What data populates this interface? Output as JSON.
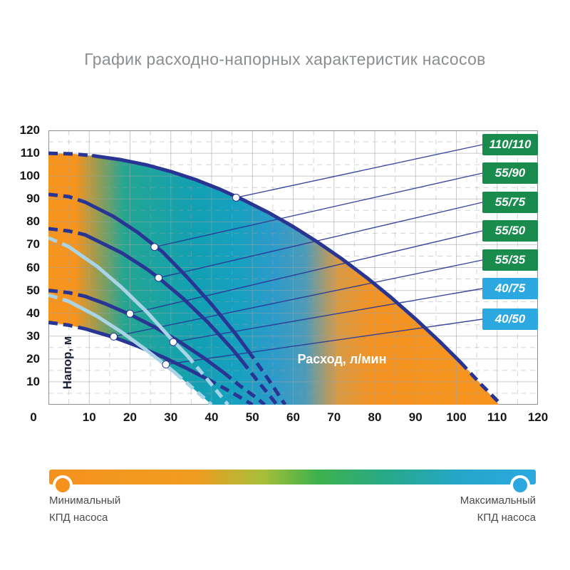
{
  "title": "График расходно-напорных характеристик насосов",
  "chart": {
    "y_axis_label": "Напор, м",
    "x_axis_label": "Расход, л/мин"
  },
  "legend": {
    "min_label_line1": "Минимальный",
    "min_label_line2": "КПД насоса",
    "max_label_line1": "Максимальный",
    "max_label_line2": "КПД насоса",
    "min_color": "#f5921e",
    "max_color": "#2ba8e0"
  },
  "colors": {
    "dark_curve": "#283593",
    "light_curve": "#a8d4e6",
    "badge_green": "#188b4d",
    "badge_blue": "#2ba8e0",
    "grid": "#9aa0a6",
    "tick_text": "#161616",
    "title_text": "#8a8e90"
  },
  "chart_data": {
    "type": "line",
    "title": "График расходно-напорных характеристик насосов",
    "xlabel": "Расход, л/мин",
    "ylabel": "Напор, м",
    "xlim": [
      0,
      120
    ],
    "ylim": [
      0,
      120
    ],
    "x_ticks": [
      0,
      10,
      20,
      30,
      40,
      50,
      60,
      70,
      80,
      90,
      100,
      110,
      120
    ],
    "y_ticks": [
      10,
      20,
      30,
      40,
      50,
      60,
      70,
      80,
      90,
      100,
      110,
      120
    ],
    "grid": "major solid every 10, minor dashed every 5",
    "legend_position": "right badges",
    "series": [
      {
        "name": "110/110",
        "badge_color": "#188b4d",
        "curve_color": "#283593",
        "width": 5,
        "max_head_m": 110,
        "max_flow_lmin": 111,
        "dash_start": [
          [
            0,
            110
          ],
          [
            6,
            109.7
          ],
          [
            11,
            108.9
          ]
        ],
        "solid": [
          [
            11,
            108.9
          ],
          [
            18,
            107.1
          ],
          [
            24,
            104.9
          ],
          [
            30,
            102
          ],
          [
            36,
            98.5
          ],
          [
            42,
            94.3
          ],
          [
            48,
            89.4
          ],
          [
            54,
            84
          ],
          [
            60,
            77.9
          ],
          [
            66,
            71.1
          ],
          [
            72,
            63.7
          ],
          [
            78,
            55.6
          ],
          [
            84,
            46.9
          ],
          [
            90,
            37.5
          ],
          [
            96,
            27.5
          ],
          [
            101,
            18.6
          ]
        ],
        "dash_end": [
          [
            101,
            18.6
          ],
          [
            106,
            9
          ],
          [
            111,
            0
          ]
        ],
        "marker": [
          46,
          90.6
        ]
      },
      {
        "name": "55/90",
        "badge_color": "#188b4d",
        "curve_color": "#283593",
        "width": 5,
        "max_head_m": 92,
        "max_flow_lmin": 58,
        "dash_start": [
          [
            0,
            92
          ],
          [
            5,
            91
          ],
          [
            9,
            88.6
          ]
        ],
        "solid": [
          [
            9,
            88.6
          ],
          [
            16,
            82.3
          ],
          [
            22,
            75.2
          ],
          [
            28,
            66.8
          ],
          [
            34,
            55.8
          ],
          [
            40,
            43.9
          ],
          [
            46,
            30.7
          ],
          [
            49,
            23.5
          ]
        ],
        "dash_end": [
          [
            49,
            23.5
          ],
          [
            53,
            13.5
          ],
          [
            56,
            5.5
          ],
          [
            58,
            0
          ]
        ],
        "marker": [
          26,
          69
        ]
      },
      {
        "name": "55/75",
        "badge_color": "#188b4d",
        "curve_color": "#283593",
        "width": 5,
        "max_head_m": 77,
        "max_flow_lmin": 56,
        "dash_start": [
          [
            0,
            77
          ],
          [
            5,
            76
          ],
          [
            9,
            74.3
          ]
        ],
        "solid": [
          [
            9,
            74.3
          ],
          [
            18,
            66.4
          ],
          [
            24,
            59.5
          ],
          [
            27,
            55.5
          ],
          [
            33,
            46.5
          ],
          [
            39,
            36.2
          ],
          [
            45,
            24.5
          ],
          [
            47.5,
            19
          ]
        ],
        "dash_end": [
          [
            47.5,
            19
          ],
          [
            51,
            11
          ],
          [
            54,
            4.5
          ],
          [
            56,
            0
          ]
        ],
        "marker": [
          27,
          55.5
        ]
      },
      {
        "name": "55/50",
        "badge_color": "#188b4d",
        "curve_color": "#283593",
        "width": 5,
        "max_head_m": 50,
        "max_flow_lmin": 53,
        "dash_start": [
          [
            0,
            50
          ],
          [
            5,
            49
          ],
          [
            9,
            47.4
          ]
        ],
        "solid": [
          [
            9,
            47.4
          ],
          [
            14,
            44.1
          ],
          [
            20,
            39.5
          ],
          [
            26,
            34
          ],
          [
            32,
            27.7
          ],
          [
            38,
            20.6
          ],
          [
            43,
            14
          ]
        ],
        "dash_end": [
          [
            43,
            14
          ],
          [
            47,
            8.2
          ],
          [
            51,
            3
          ],
          [
            53,
            0
          ]
        ],
        "marker": [
          20,
          39.8
        ]
      },
      {
        "name": "55/35",
        "badge_color": "#188b4d",
        "curve_color": "#283593",
        "width": 5,
        "max_head_m": 36,
        "max_flow_lmin": 50,
        "dash_start": [
          [
            0,
            36
          ],
          [
            5,
            34.8
          ],
          [
            9,
            33.2
          ]
        ],
        "solid": [
          [
            9,
            33.2
          ],
          [
            16,
            29.5
          ],
          [
            22,
            25.5
          ],
          [
            28,
            20.9
          ],
          [
            34,
            15.8
          ],
          [
            39,
            11.2
          ]
        ],
        "dash_end": [
          [
            39,
            11.2
          ],
          [
            44,
            6.3
          ],
          [
            47,
            3.2
          ],
          [
            50,
            0
          ]
        ],
        "marker": [
          16,
          29.8
        ]
      },
      {
        "name": "40/75",
        "badge_color": "#2ba8e0",
        "curve_color": "#a8d4e6",
        "width": 5,
        "max_head_m": 73,
        "max_flow_lmin": 44,
        "dash_start": [
          [
            0,
            73
          ],
          [
            5,
            69.1
          ]
        ],
        "solid": [
          [
            5,
            69.1
          ],
          [
            12,
            60.4
          ],
          [
            18,
            51.2
          ],
          [
            24,
            40.8
          ],
          [
            30.6,
            27.8
          ],
          [
            34,
            21.5
          ]
        ],
        "dash_end": [
          [
            34,
            21.5
          ],
          [
            38,
            13.1
          ],
          [
            41,
            6.6
          ],
          [
            44,
            0
          ]
        ],
        "marker": [
          30.6,
          27.4
        ]
      },
      {
        "name": "40/50",
        "badge_color": "#2ba8e0",
        "curve_color": "#a8d4e6",
        "width": 5,
        "max_head_m": 48,
        "max_flow_lmin": 40,
        "dash_start": [
          [
            0,
            48
          ],
          [
            5,
            45.2
          ]
        ],
        "solid": [
          [
            5,
            45.2
          ],
          [
            12,
            38.6
          ],
          [
            18,
            31.7
          ],
          [
            24,
            23.9
          ],
          [
            28.8,
            17.2
          ],
          [
            31,
            14
          ]
        ],
        "dash_end": [
          [
            31,
            14
          ],
          [
            36,
            6.3
          ],
          [
            40,
            0
          ]
        ],
        "marker": [
          28.8,
          17.6
        ]
      }
    ],
    "efficiency_region": {
      "description": "shaded efficiency zone between outer 110/110 curve and inner 55/35 / 40/50 boundary, orange = min efficiency, blue = max efficiency",
      "outline": [
        [
          0,
          110
        ],
        [
          6,
          109.7
        ],
        [
          12,
          108.7
        ],
        [
          18,
          107.1
        ],
        [
          24,
          104.9
        ],
        [
          30,
          102
        ],
        [
          36,
          98.5
        ],
        [
          42,
          94.3
        ],
        [
          48,
          89.4
        ],
        [
          54,
          84
        ],
        [
          60,
          77.9
        ],
        [
          66,
          71.1
        ],
        [
          72,
          63.7
        ],
        [
          78,
          55.6
        ],
        [
          84,
          46.9
        ],
        [
          90,
          37.5
        ],
        [
          96,
          27.5
        ],
        [
          102,
          16.8
        ],
        [
          106,
          9
        ],
        [
          110.5,
          0
        ],
        [
          40,
          0
        ],
        [
          36,
          6.3
        ],
        [
          32,
          12.5
        ],
        [
          28.8,
          17.2
        ],
        [
          24,
          23.9
        ],
        [
          22,
          25.8
        ],
        [
          16,
          29.5
        ],
        [
          9,
          33.2
        ],
        [
          5,
          34.8
        ],
        [
          0,
          36
        ]
      ],
      "gradient_stops": [
        [
          0,
          "#f7941e"
        ],
        [
          0.06,
          "#f7941e"
        ],
        [
          0.17,
          "#23a693"
        ],
        [
          0.33,
          "#12a0b4"
        ],
        [
          0.42,
          "#17a0c0"
        ],
        [
          0.5,
          "#2d9bca"
        ],
        [
          0.57,
          "#4e9bb9"
        ],
        [
          0.64,
          "#d89a46"
        ],
        [
          0.72,
          "#f49322"
        ],
        [
          1,
          "#f7941e"
        ]
      ]
    }
  }
}
